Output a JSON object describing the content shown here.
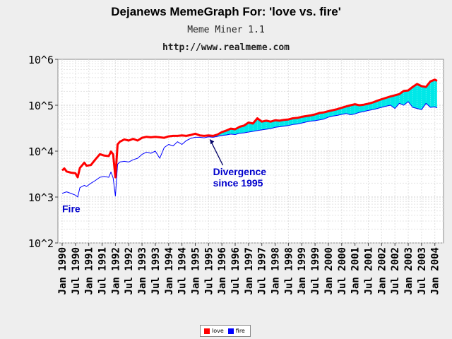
{
  "header": {
    "title": "Dejanews MemeGraph For: 'love vs. fire'",
    "subtitle": "Meme Miner 1.1",
    "url": "http://www.realmeme.com"
  },
  "chart_data": {
    "type": "line",
    "title": "Dejanews MemeGraph For: 'love vs. fire'",
    "subtitle": "Meme Miner 1.1",
    "yscale": "log",
    "ylim": [
      100,
      1000000
    ],
    "y_ticks": [
      {
        "value": 100,
        "label": "10^2"
      },
      {
        "value": 1000,
        "label": "10^3"
      },
      {
        "value": 10000,
        "label": "10^4"
      },
      {
        "value": 100000,
        "label": "10^5"
      },
      {
        "value": 1000000,
        "label": "10^6"
      }
    ],
    "x_ticks": [
      "Jan 1990",
      "Jul 1990",
      "Jan 1991",
      "Jul 1991",
      "Jan 1992",
      "Jul 1992",
      "Jan 1993",
      "Jul 1993",
      "Jan 1994",
      "Jul 1994",
      "Jan 1995",
      "Jul 1995",
      "Jan 1996",
      "Jul 1996",
      "Jan 1997",
      "Jul 1997",
      "Jan 1998",
      "Jul 1998",
      "Jan 1999",
      "Jul 1999",
      "Jan 2000",
      "Jul 2000",
      "Jan 2001",
      "Jul 2001",
      "Jan 2002",
      "Jul 2002",
      "Jan 2003",
      "Jul 2003",
      "Jan 2004"
    ],
    "grid": true,
    "legend_position": "bottom-center",
    "fill_between_color": "#00e8e8",
    "series": [
      {
        "name": "love",
        "color": "#ff0000",
        "points": [
          [
            "1990-01",
            3800
          ],
          [
            "1990-02",
            4200
          ],
          [
            "1990-03",
            3600
          ],
          [
            "1990-05",
            3400
          ],
          [
            "1990-07",
            3300
          ],
          [
            "1990-08",
            2700
          ],
          [
            "1990-09",
            4300
          ],
          [
            "1990-11",
            5600
          ],
          [
            "1990-12",
            4800
          ],
          [
            "1991-02",
            5000
          ],
          [
            "1991-04",
            6600
          ],
          [
            "1991-06",
            8600
          ],
          [
            "1991-08",
            8000
          ],
          [
            "1991-10",
            7800
          ],
          [
            "1991-11",
            9800
          ],
          [
            "1991-12",
            8500
          ],
          [
            "1992-01",
            2700
          ],
          [
            "1992-02",
            14000
          ],
          [
            "1992-03",
            16000
          ],
          [
            "1992-05",
            18000
          ],
          [
            "1992-07",
            17000
          ],
          [
            "1992-09",
            18500
          ],
          [
            "1992-11",
            17000
          ],
          [
            "1993-01",
            19500
          ],
          [
            "1993-03",
            20500
          ],
          [
            "1993-05",
            20000
          ],
          [
            "1993-07",
            20500
          ],
          [
            "1993-09",
            20000
          ],
          [
            "1993-11",
            19500
          ],
          [
            "1994-01",
            21000
          ],
          [
            "1994-03",
            21500
          ],
          [
            "1994-05",
            21500
          ],
          [
            "1994-07",
            22000
          ],
          [
            "1994-09",
            21500
          ],
          [
            "1994-11",
            22500
          ],
          [
            "1995-01",
            24000
          ],
          [
            "1995-03",
            22000
          ],
          [
            "1995-05",
            21500
          ],
          [
            "1995-07",
            22000
          ],
          [
            "1995-09",
            21500
          ],
          [
            "1995-11",
            23000
          ],
          [
            "1996-01",
            26000
          ],
          [
            "1996-03",
            28000
          ],
          [
            "1996-05",
            31000
          ],
          [
            "1996-07",
            30000
          ],
          [
            "1996-09",
            34000
          ],
          [
            "1996-11",
            36000
          ],
          [
            "1997-01",
            42000
          ],
          [
            "1997-03",
            40000
          ],
          [
            "1997-05",
            52000
          ],
          [
            "1997-07",
            44000
          ],
          [
            "1997-09",
            46000
          ],
          [
            "1997-11",
            44000
          ],
          [
            "1998-01",
            47000
          ],
          [
            "1998-03",
            46000
          ],
          [
            "1998-05",
            48000
          ],
          [
            "1998-07",
            49000
          ],
          [
            "1998-09",
            52000
          ],
          [
            "1998-11",
            53000
          ],
          [
            "1999-01",
            56000
          ],
          [
            "1999-03",
            58000
          ],
          [
            "1999-05",
            60000
          ],
          [
            "1999-07",
            63000
          ],
          [
            "1999-09",
            68000
          ],
          [
            "1999-11",
            70000
          ],
          [
            "2000-01",
            74000
          ],
          [
            "2000-03",
            78000
          ],
          [
            "2000-05",
            82000
          ],
          [
            "2000-07",
            88000
          ],
          [
            "2000-09",
            94000
          ],
          [
            "2000-11",
            100000
          ],
          [
            "2001-01",
            105000
          ],
          [
            "2001-03",
            100000
          ],
          [
            "2001-05",
            103000
          ],
          [
            "2001-07",
            108000
          ],
          [
            "2001-09",
            115000
          ],
          [
            "2001-11",
            125000
          ],
          [
            "2002-01",
            135000
          ],
          [
            "2002-03",
            145000
          ],
          [
            "2002-05",
            155000
          ],
          [
            "2002-07",
            165000
          ],
          [
            "2002-09",
            175000
          ],
          [
            "2002-11",
            205000
          ],
          [
            "2003-01",
            210000
          ],
          [
            "2003-03",
            250000
          ],
          [
            "2003-05",
            290000
          ],
          [
            "2003-07",
            260000
          ],
          [
            "2003-09",
            250000
          ],
          [
            "2003-11",
            330000
          ],
          [
            "2004-01",
            360000
          ],
          [
            "2004-02",
            340000
          ]
        ]
      },
      {
        "name": "fire",
        "color": "#0000ff",
        "points": [
          [
            "1990-01",
            1200
          ],
          [
            "1990-02",
            1250
          ],
          [
            "1990-03",
            1300
          ],
          [
            "1990-05",
            1200
          ],
          [
            "1990-07",
            1100
          ],
          [
            "1990-08",
            1000
          ],
          [
            "1990-09",
            1600
          ],
          [
            "1990-11",
            1800
          ],
          [
            "1990-12",
            1700
          ],
          [
            "1991-02",
            2000
          ],
          [
            "1991-04",
            2300
          ],
          [
            "1991-06",
            2700
          ],
          [
            "1991-08",
            2800
          ],
          [
            "1991-10",
            2700
          ],
          [
            "1991-11",
            3500
          ],
          [
            "1991-12",
            2600
          ],
          [
            "1992-01",
            1050
          ],
          [
            "1992-02",
            5200
          ],
          [
            "1992-03",
            5800
          ],
          [
            "1992-05",
            6000
          ],
          [
            "1992-07",
            5800
          ],
          [
            "1992-09",
            6500
          ],
          [
            "1992-11",
            7000
          ],
          [
            "1993-01",
            8500
          ],
          [
            "1993-03",
            9500
          ],
          [
            "1993-05",
            9000
          ],
          [
            "1993-07",
            10000
          ],
          [
            "1993-09",
            7000
          ],
          [
            "1993-11",
            12000
          ],
          [
            "1994-01",
            14000
          ],
          [
            "1994-03",
            13000
          ],
          [
            "1994-05",
            16000
          ],
          [
            "1994-07",
            14000
          ],
          [
            "1994-09",
            17000
          ],
          [
            "1994-11",
            19000
          ],
          [
            "1995-01",
            20000
          ],
          [
            "1995-03",
            20000
          ],
          [
            "1995-05",
            19500
          ],
          [
            "1995-07",
            20500
          ],
          [
            "1995-09",
            20000
          ],
          [
            "1995-11",
            21000
          ],
          [
            "1996-01",
            22000
          ],
          [
            "1996-03",
            22500
          ],
          [
            "1996-05",
            23500
          ],
          [
            "1996-07",
            23000
          ],
          [
            "1996-09",
            24500
          ],
          [
            "1996-11",
            25000
          ],
          [
            "1997-01",
            26000
          ],
          [
            "1997-03",
            27000
          ],
          [
            "1997-05",
            28000
          ],
          [
            "1997-07",
            29000
          ],
          [
            "1997-09",
            30000
          ],
          [
            "1997-11",
            31000
          ],
          [
            "1998-01",
            33000
          ],
          [
            "1998-03",
            34000
          ],
          [
            "1998-05",
            35000
          ],
          [
            "1998-07",
            36000
          ],
          [
            "1998-09",
            38000
          ],
          [
            "1998-11",
            39000
          ],
          [
            "1999-01",
            41000
          ],
          [
            "1999-03",
            43000
          ],
          [
            "1999-05",
            45000
          ],
          [
            "1999-07",
            46000
          ],
          [
            "1999-09",
            48000
          ],
          [
            "1999-11",
            50000
          ],
          [
            "2000-01",
            55000
          ],
          [
            "2000-03",
            58000
          ],
          [
            "2000-05",
            60000
          ],
          [
            "2000-07",
            63000
          ],
          [
            "2000-09",
            66000
          ],
          [
            "2000-11",
            62000
          ],
          [
            "2001-01",
            65000
          ],
          [
            "2001-03",
            70000
          ],
          [
            "2001-05",
            73000
          ],
          [
            "2001-07",
            77000
          ],
          [
            "2001-09",
            80000
          ],
          [
            "2001-11",
            85000
          ],
          [
            "2002-01",
            90000
          ],
          [
            "2002-03",
            95000
          ],
          [
            "2002-05",
            100000
          ],
          [
            "2002-07",
            85000
          ],
          [
            "2002-09",
            110000
          ],
          [
            "2002-11",
            100000
          ],
          [
            "2003-01",
            120000
          ],
          [
            "2003-03",
            90000
          ],
          [
            "2003-05",
            85000
          ],
          [
            "2003-07",
            80000
          ],
          [
            "2003-09",
            110000
          ],
          [
            "2003-11",
            90000
          ],
          [
            "2004-01",
            92000
          ],
          [
            "2004-02",
            88000
          ]
        ]
      }
    ],
    "annotations": [
      {
        "text_lines": [
          "Divergence",
          "since 1995"
        ],
        "color": "#0000cc",
        "x": "1995-09",
        "y": 3000,
        "arrow_to": [
          "1995-07",
          20000
        ]
      },
      {
        "text_lines": [
          "Fire"
        ],
        "color": "#0000cc",
        "x": "1990-01",
        "y": 470
      }
    ]
  }
}
